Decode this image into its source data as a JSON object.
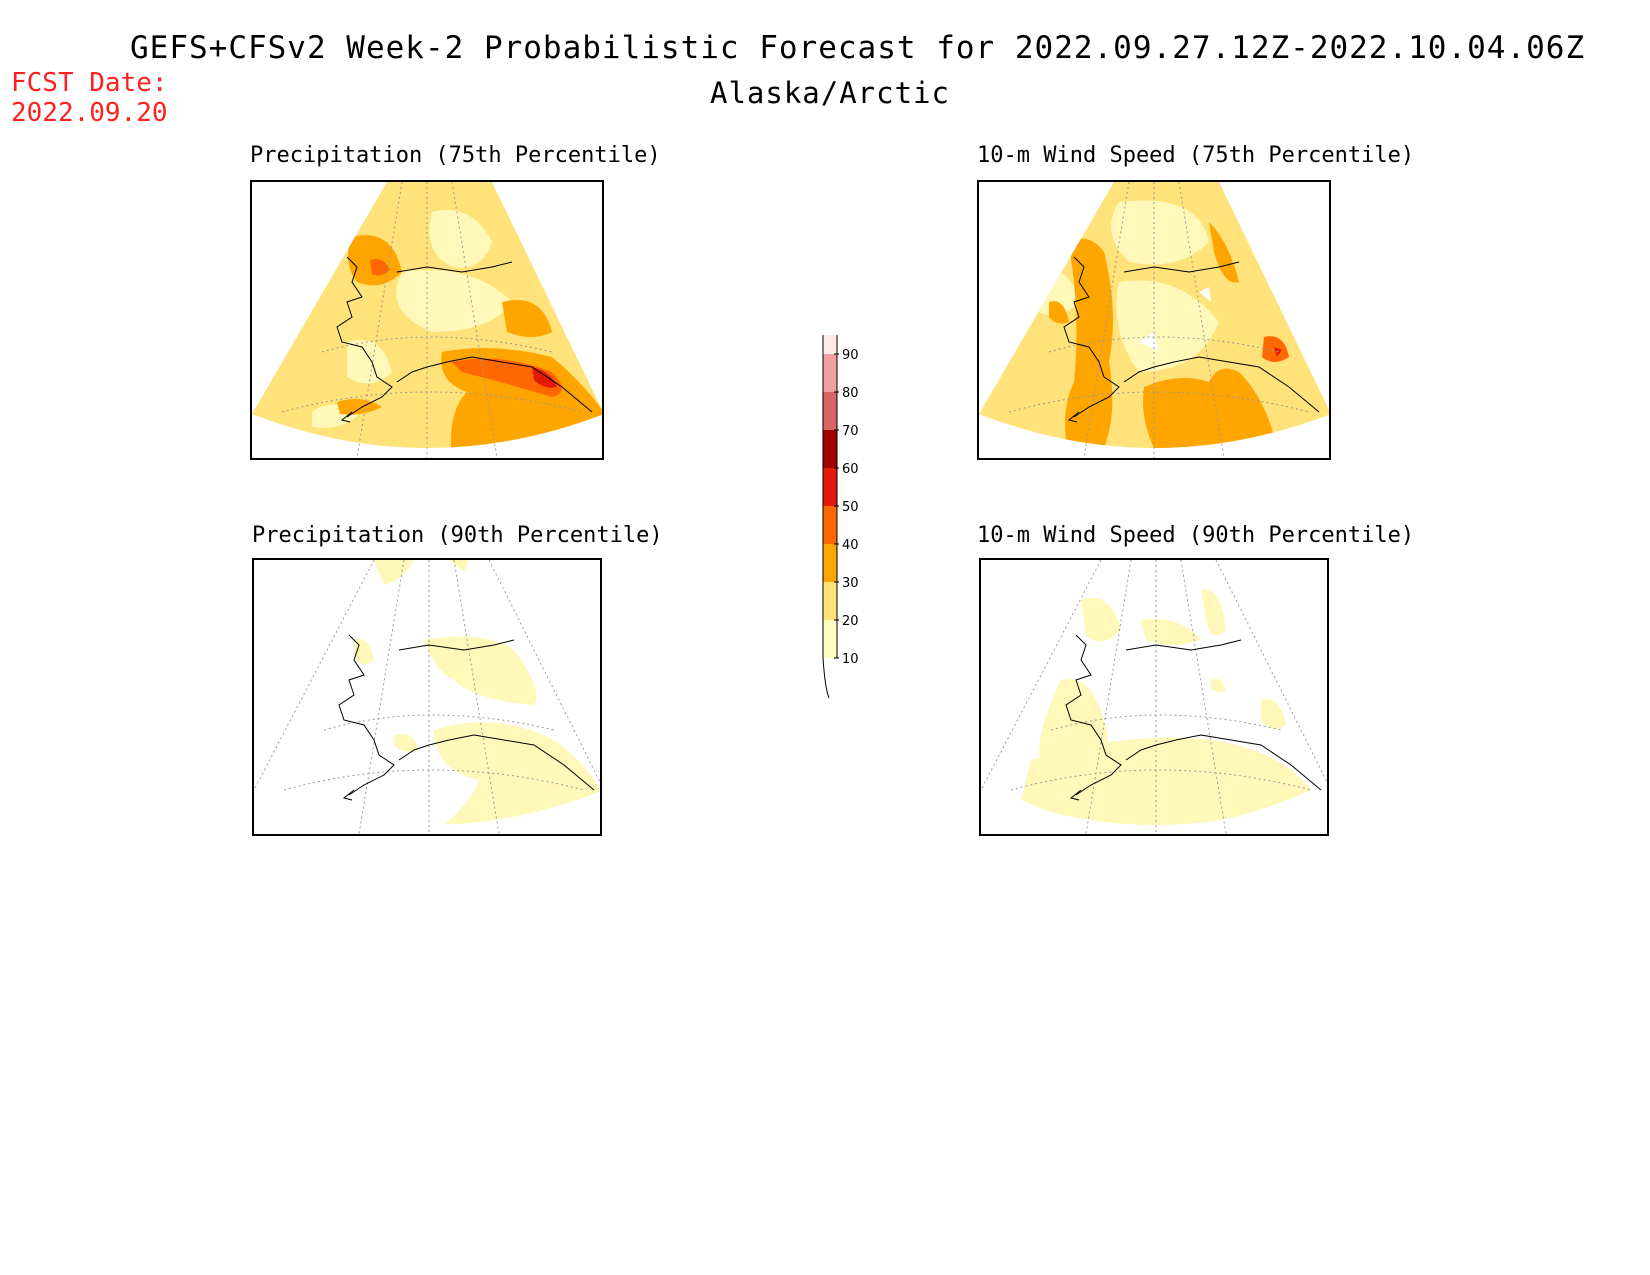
{
  "header": {
    "title": "GEFS+CFSv2 Week-2 Probabilistic Forecast for 2022.09.27.12Z-2022.10.04.06Z",
    "subtitle": "Alaska/Arctic",
    "forecast_date_label": "FCST Date:",
    "forecast_date": "2022.09.20"
  },
  "panels": [
    {
      "id": "precip-75",
      "title": "Precipitation (75th Percentile)"
    },
    {
      "id": "wind-75",
      "title": "10-m Wind Speed (75th Percentile)"
    },
    {
      "id": "precip-90",
      "title": "Precipitation (90th Percentile)"
    },
    {
      "id": "wind-90",
      "title": "10-m Wind Speed (90th Percentile)"
    }
  ],
  "colorbar": {
    "levels": [
      {
        "value": "10",
        "color": "#fffcc0"
      },
      {
        "value": "20",
        "color": "#ffe27a"
      },
      {
        "value": "30",
        "color": "#ffa500"
      },
      {
        "value": "40",
        "color": "#ff6800"
      },
      {
        "value": "50",
        "color": "#e31a0a"
      },
      {
        "value": "60",
        "color": "#a00000"
      },
      {
        "value": "70",
        "color": "#d96464"
      },
      {
        "value": "80",
        "color": "#f0a0a0"
      },
      {
        "value": "90",
        "color": "#ffe8e8"
      }
    ]
  },
  "colors": {
    "light_yellow": "#fff8b8",
    "yellow": "#ffe27a",
    "orange": "#ffa500",
    "dark_orange": "#ff6800",
    "red": "#e31a0a"
  }
}
